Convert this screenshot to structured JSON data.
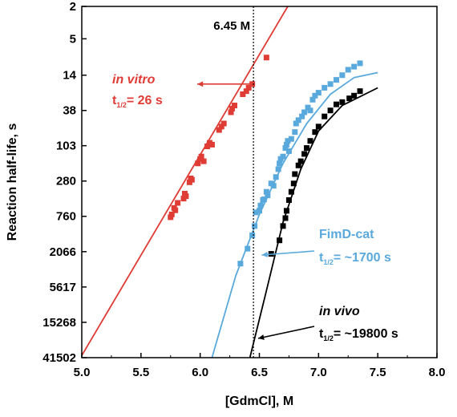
{
  "chart_data": {
    "type": "scatter",
    "xlabel": "[GdmCl], M",
    "ylabel": "Reaction half-life, s",
    "xlim": [
      5.0,
      8.0
    ],
    "x_ticks": [
      5.0,
      5.5,
      6.0,
      6.5,
      7.0,
      7.5,
      8.0
    ],
    "x_tick_labels": [
      "5.0",
      "5.5",
      "6.0",
      "6.5",
      "7.0",
      "7.5",
      "8.0"
    ],
    "y_scale": "log",
    "y_reversed": true,
    "ylim": [
      2,
      41502
    ],
    "y_ticks": [
      2,
      5,
      14,
      38,
      103,
      280,
      760,
      2066,
      5617,
      15268,
      41502
    ],
    "y_tick_labels": [
      "2",
      "5",
      "14",
      "38",
      "103",
      "280",
      "760",
      "2066",
      "5617",
      "15268",
      "41502"
    ],
    "grid": false,
    "reference_line": {
      "x": 6.45,
      "label": "6.45 M",
      "style": "dotted"
    },
    "series": [
      {
        "name": "in vitro",
        "color": "#e03c36",
        "points": [
          [
            5.75,
            780
          ],
          [
            5.76,
            720
          ],
          [
            5.78,
            600
          ],
          [
            5.79,
            640
          ],
          [
            5.81,
            520
          ],
          [
            5.86,
            460
          ],
          [
            5.87,
            400
          ],
          [
            5.88,
            430
          ],
          [
            5.91,
            290
          ],
          [
            5.92,
            260
          ],
          [
            5.93,
            270
          ],
          [
            5.98,
            170
          ],
          [
            6.0,
            150
          ],
          [
            6.01,
            140
          ],
          [
            6.03,
            160
          ],
          [
            6.06,
            105
          ],
          [
            6.08,
            95
          ],
          [
            6.1,
            100
          ],
          [
            6.16,
            66
          ],
          [
            6.18,
            60
          ],
          [
            6.2,
            55
          ],
          [
            6.26,
            40
          ],
          [
            6.27,
            36
          ],
          [
            6.29,
            33
          ],
          [
            6.36,
            24
          ],
          [
            6.39,
            22
          ],
          [
            6.41,
            20
          ],
          [
            6.44,
            18
          ],
          [
            6.56,
            8.5
          ]
        ],
        "fit": [
          [
            5.0,
            39000
          ],
          [
            6.74,
            2
          ]
        ]
      },
      {
        "name": "FimD-cat",
        "color": "#5aa9dc",
        "points": [
          [
            6.34,
            2900
          ],
          [
            6.4,
            1900
          ],
          [
            6.44,
            1300
          ],
          [
            6.46,
            1000
          ],
          [
            6.47,
            680
          ],
          [
            6.5,
            650
          ],
          [
            6.51,
            560
          ],
          [
            6.53,
            480
          ],
          [
            6.54,
            470
          ],
          [
            6.56,
            380
          ],
          [
            6.57,
            420
          ],
          [
            6.6,
            300
          ],
          [
            6.62,
            320
          ],
          [
            6.64,
            250
          ],
          [
            6.66,
            200
          ],
          [
            6.67,
            170
          ],
          [
            6.68,
            150
          ],
          [
            6.7,
            140
          ],
          [
            6.72,
            110
          ],
          [
            6.73,
            100
          ],
          [
            6.74,
            90
          ],
          [
            6.75,
            120
          ],
          [
            6.77,
            85
          ],
          [
            6.8,
            70
          ],
          [
            6.81,
            55
          ],
          [
            6.83,
            50
          ],
          [
            6.86,
            45
          ],
          [
            6.88,
            40
          ],
          [
            6.91,
            35
          ],
          [
            6.93,
            38
          ],
          [
            6.95,
            28
          ],
          [
            6.97,
            25
          ],
          [
            7.0,
            23
          ],
          [
            7.05,
            20
          ],
          [
            7.1,
            18
          ],
          [
            7.15,
            16
          ],
          [
            7.2,
            14
          ],
          [
            7.25,
            12
          ],
          [
            7.3,
            11
          ],
          [
            7.35,
            10
          ]
        ],
        "fit": [
          [
            6.1,
            41502
          ],
          [
            6.3,
            4100
          ],
          [
            6.5,
            720
          ],
          [
            6.7,
            170
          ],
          [
            6.9,
            55
          ],
          [
            7.1,
            24
          ],
          [
            7.3,
            15
          ],
          [
            7.5,
            13
          ]
        ]
      },
      {
        "name": "in vivo",
        "color": "#000000",
        "points": [
          [
            6.6,
            2200
          ],
          [
            6.67,
            1500
          ],
          [
            6.7,
            1000
          ],
          [
            6.72,
            800
          ],
          [
            6.73,
            650
          ],
          [
            6.75,
            480
          ],
          [
            6.77,
            380
          ],
          [
            6.79,
            300
          ],
          [
            6.8,
            230
          ],
          [
            6.83,
            180
          ],
          [
            6.85,
            160
          ],
          [
            6.88,
            130
          ],
          [
            6.9,
            110
          ],
          [
            6.93,
            90
          ],
          [
            6.97,
            70
          ],
          [
            7.0,
            60
          ],
          [
            7.05,
            45
          ],
          [
            7.1,
            38
          ],
          [
            7.15,
            32
          ],
          [
            7.2,
            30
          ],
          [
            7.26,
            27
          ],
          [
            7.3,
            25
          ],
          [
            7.35,
            22
          ]
        ],
        "fit": [
          [
            6.42,
            41502
          ],
          [
            6.55,
            7100
          ],
          [
            6.7,
            900
          ],
          [
            6.85,
            200
          ],
          [
            7.0,
            68
          ],
          [
            7.2,
            33
          ],
          [
            7.5,
            20
          ]
        ]
      }
    ],
    "annotations": [
      {
        "key": "invitro",
        "line1": "in vitro",
        "t_prefix": "t",
        "t_sub": "1/2",
        "t_suffix": "= 26 s",
        "color": "#e03c36"
      },
      {
        "key": "fimd",
        "line1": "FimD-cat",
        "t_prefix": "t",
        "t_sub": "1/2",
        "t_suffix": "= ~1700 s",
        "color": "#5aa9dc"
      },
      {
        "key": "invivo",
        "line1": "in vivo",
        "t_prefix": "t",
        "t_sub": "1/2",
        "t_suffix": "= ~19800 s",
        "color": "#000000"
      }
    ]
  }
}
